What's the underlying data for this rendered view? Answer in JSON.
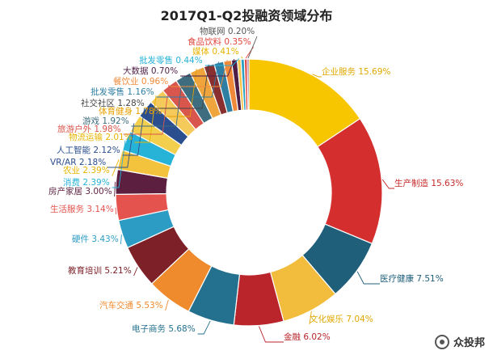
{
  "chart_data": {
    "type": "pie",
    "title": "2017Q1-Q2投融资领域分布",
    "donut": true,
    "categories": [
      "企业服务",
      "生产制造",
      "医疗健康",
      "文化娱乐",
      "金融",
      "电子商务",
      "汽车交通",
      "教育培训",
      "硬件",
      "生活服务",
      "房产家居",
      "农业",
      "消费",
      "VR/AR",
      "人工智能",
      "物流运输",
      "旅游户外",
      "游戏",
      "体育健身",
      "社交社区",
      "批发零售",
      "餐饮业",
      "大数据",
      "批发零售",
      "媒体",
      "食品饮料",
      "物联网"
    ],
    "values": [
      15.69,
      15.63,
      7.51,
      7.04,
      6.02,
      5.68,
      5.53,
      5.21,
      3.43,
      3.14,
      3.0,
      2.39,
      2.39,
      2.18,
      2.12,
      2.01,
      1.98,
      1.92,
      1.78,
      1.28,
      1.16,
      0.96,
      0.7,
      0.44,
      0.41,
      0.35,
      0.2
    ],
    "labels": [
      "企业服务 15.69%",
      "生产制造 15.63%",
      "医疗健康 7.51%",
      "文化娱乐 7.04%",
      "金融 6.02%",
      "电子商务 5.68%",
      "汽车交通 5.53%",
      "教育培训 5.21%",
      "硬件 3.43%",
      "生活服务 3.14%",
      "房产家居 3.00%",
      "农业 2.39%",
      "消费 2.39%",
      "VR/AR 2.18%",
      "人工智能 2.12%",
      "物流运输 2.01%",
      "旅游户外 1.98%",
      "游戏 1.92%",
      "体育健身 1.78%",
      "社交社区 1.28%",
      "批发零售 1.16%",
      "餐饮业 0.96%",
      "大数据 0.70%",
      "批发零售 0.44%",
      "媒体 0.41%",
      "食品饮料 0.35%",
      "物联网 0.20%"
    ],
    "colors": [
      "#f7c600",
      "#d42e2e",
      "#1f5f7a",
      "#f2bd3c",
      "#b9252a",
      "#23708f",
      "#ef8a2d",
      "#7e2027",
      "#2d9cc4",
      "#e4534e",
      "#5c1f3f",
      "#f4c33d",
      "#27b2d8",
      "#f3cf4e",
      "#2b4f8e",
      "#f6c95b",
      "#d9564d",
      "#3d6d7e",
      "#f0a53c",
      "#8a2f2f",
      "#2f7fa3",
      "#f08a3a",
      "#4e1e45",
      "#f5c44b",
      "#2a9fc0",
      "#e2463f",
      "#7a2a62"
    ],
    "label_colors": [
      "#e0a800",
      "#c62828",
      "#1f5f7a",
      "#e0a800",
      "#b9252a",
      "#23708f",
      "#ef8a2d",
      "#7e2027",
      "#2d9cc4",
      "#e4534e",
      "#5c1f3f",
      "#e8b400",
      "#27b2d8",
      "#2b4f8e",
      "#2b4f8e",
      "#e8b400",
      "#d9564d",
      "#3d6d7e",
      "#e8a000",
      "#444444",
      "#2f7fa3",
      "#f08a3a",
      "#4e1e45",
      "#27b2d8",
      "#e8b400",
      "#e2463f",
      "#555555"
    ]
  },
  "watermark": {
    "text": "众投邦",
    "icon": "circle-logo-icon"
  }
}
